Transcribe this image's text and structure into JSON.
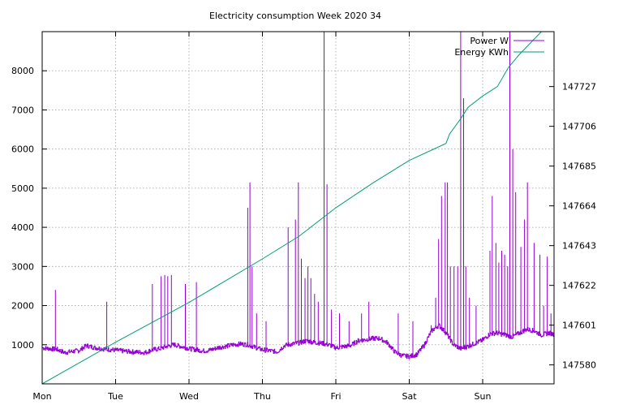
{
  "chart_data": {
    "type": "line",
    "title": "Electricity consumption Week 2020 34",
    "x_tick_labels": [
      "Mon",
      "Tue",
      "Wed",
      "Thu",
      "Fri",
      "Sat",
      "Sun"
    ],
    "x_range_days": [
      0,
      7
    ],
    "y_left": {
      "range": [
        0,
        9000
      ],
      "ticks": [
        1000,
        2000,
        3000,
        4000,
        5000,
        6000,
        7000,
        8000
      ]
    },
    "y_right": {
      "range": [
        147570,
        147756
      ],
      "ticks": [
        147580,
        147601,
        147622,
        147643,
        147664,
        147685,
        147706,
        147727
      ]
    },
    "grid": true,
    "legend": {
      "position": "top-right"
    },
    "series": [
      {
        "name": "Power W",
        "axis": "left",
        "color": "#9400d3",
        "baseline": [
          [
            0.0,
            920
          ],
          [
            0.2,
            880
          ],
          [
            0.3,
            800
          ],
          [
            0.5,
            850
          ],
          [
            0.6,
            980
          ],
          [
            0.7,
            930
          ],
          [
            0.8,
            900
          ],
          [
            0.9,
            880
          ],
          [
            1.0,
            860
          ],
          [
            1.2,
            820
          ],
          [
            1.4,
            800
          ],
          [
            1.5,
            870
          ],
          [
            1.6,
            900
          ],
          [
            1.7,
            960
          ],
          [
            1.8,
            1000
          ],
          [
            1.9,
            950
          ],
          [
            2.0,
            900
          ],
          [
            2.2,
            840
          ],
          [
            2.3,
            870
          ],
          [
            2.4,
            930
          ],
          [
            2.5,
            960
          ],
          [
            2.6,
            1000
          ],
          [
            2.7,
            1020
          ],
          [
            2.8,
            1000
          ],
          [
            2.9,
            930
          ],
          [
            3.0,
            870
          ],
          [
            3.2,
            820
          ],
          [
            3.3,
            980
          ],
          [
            3.5,
            1050
          ],
          [
            3.6,
            1100
          ],
          [
            3.7,
            1060
          ],
          [
            3.8,
            1040
          ],
          [
            3.9,
            1000
          ],
          [
            4.0,
            920
          ],
          [
            4.2,
            980
          ],
          [
            4.3,
            1100
          ],
          [
            4.5,
            1160
          ],
          [
            4.6,
            1160
          ],
          [
            4.7,
            1050
          ],
          [
            4.8,
            820
          ],
          [
            4.9,
            720
          ],
          [
            5.0,
            700
          ],
          [
            5.1,
            750
          ],
          [
            5.2,
            980
          ],
          [
            5.3,
            1350
          ],
          [
            5.4,
            1500
          ],
          [
            5.5,
            1300
          ],
          [
            5.6,
            1000
          ],
          [
            5.7,
            900
          ],
          [
            5.8,
            960
          ],
          [
            5.9,
            1040
          ],
          [
            6.0,
            1120
          ],
          [
            6.1,
            1280
          ],
          [
            6.2,
            1300
          ],
          [
            6.3,
            1250
          ],
          [
            6.4,
            1200
          ],
          [
            6.5,
            1300
          ],
          [
            6.6,
            1400
          ],
          [
            6.7,
            1350
          ],
          [
            6.8,
            1250
          ],
          [
            6.9,
            1300
          ],
          [
            7.0,
            1250
          ]
        ],
        "spikes": [
          [
            0.18,
            2400
          ],
          [
            0.88,
            2100
          ],
          [
            1.5,
            2550
          ],
          [
            1.62,
            2750
          ],
          [
            1.67,
            2780
          ],
          [
            1.71,
            2750
          ],
          [
            1.76,
            2780
          ],
          [
            1.95,
            2550
          ],
          [
            2.1,
            2600
          ],
          [
            2.8,
            4500
          ],
          [
            2.83,
            5150
          ],
          [
            2.86,
            3000
          ],
          [
            2.92,
            1800
          ],
          [
            3.05,
            1600
          ],
          [
            3.35,
            4000
          ],
          [
            3.45,
            4200
          ],
          [
            3.49,
            5150
          ],
          [
            3.53,
            3200
          ],
          [
            3.58,
            2700
          ],
          [
            3.62,
            3000
          ],
          [
            3.66,
            2700
          ],
          [
            3.71,
            2300
          ],
          [
            3.76,
            2100
          ],
          [
            3.84,
            9000
          ],
          [
            3.88,
            5100
          ],
          [
            3.94,
            1900
          ],
          [
            4.05,
            1800
          ],
          [
            4.18,
            1600
          ],
          [
            4.35,
            1800
          ],
          [
            4.45,
            2100
          ],
          [
            4.85,
            1800
          ],
          [
            5.05,
            1600
          ],
          [
            5.3,
            1500
          ],
          [
            5.36,
            2200
          ],
          [
            5.4,
            3700
          ],
          [
            5.44,
            4800
          ],
          [
            5.49,
            5150
          ],
          [
            5.52,
            5150
          ],
          [
            5.56,
            3000
          ],
          [
            5.61,
            3000
          ],
          [
            5.66,
            3000
          ],
          [
            5.7,
            9000
          ],
          [
            5.74,
            7300
          ],
          [
            5.77,
            3000
          ],
          [
            5.82,
            2200
          ],
          [
            5.91,
            2000
          ],
          [
            6.1,
            3400
          ],
          [
            6.13,
            4800
          ],
          [
            6.18,
            3600
          ],
          [
            6.22,
            3100
          ],
          [
            6.26,
            3400
          ],
          [
            6.3,
            3300
          ],
          [
            6.34,
            3000
          ],
          [
            6.37,
            9000
          ],
          [
            6.41,
            6000
          ],
          [
            6.45,
            4900
          ],
          [
            6.52,
            3500
          ],
          [
            6.57,
            4200
          ],
          [
            6.61,
            5150
          ],
          [
            6.7,
            3600
          ],
          [
            6.78,
            3300
          ],
          [
            6.83,
            2000
          ],
          [
            6.88,
            3250
          ],
          [
            6.93,
            1800
          ]
        ]
      },
      {
        "name": "Energy KWh",
        "axis": "right",
        "color": "#009e73",
        "points": [
          [
            0.0,
            147570
          ],
          [
            1.0,
            147592
          ],
          [
            2.0,
            147613
          ],
          [
            3.0,
            147636
          ],
          [
            3.5,
            147648
          ],
          [
            4.0,
            147663
          ],
          [
            4.5,
            147676
          ],
          [
            5.0,
            147688
          ],
          [
            5.5,
            147697
          ],
          [
            5.55,
            147702
          ],
          [
            5.7,
            147710
          ],
          [
            5.8,
            147716
          ],
          [
            6.0,
            147722
          ],
          [
            6.2,
            147727
          ],
          [
            6.35,
            147737
          ],
          [
            6.5,
            147744
          ],
          [
            6.8,
            147756
          ]
        ]
      }
    ]
  }
}
